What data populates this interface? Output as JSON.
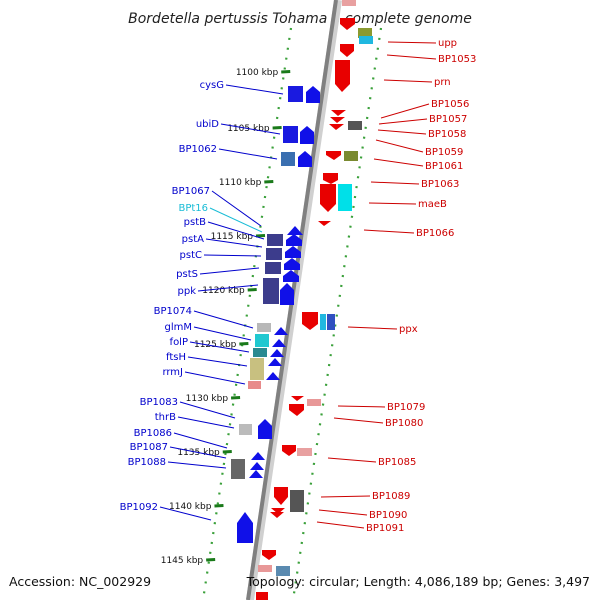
{
  "title": "Bordetella pertussis Tohama I, complete genome",
  "accession": "Accession: NC_002929",
  "topology": "Topology: circular; Length: 4,086,189 bp; Genes: 3,497",
  "colors": {
    "forward": "#1010e8",
    "reverse": "#e80000",
    "trna": "#19bcd6",
    "axis": "#888888",
    "tick_major": "#33aa33",
    "tick_minor": "#1a7a1a",
    "left_label": "#0000cc",
    "right_label": "#cc0000",
    "trna_label": "#19bcd6"
  },
  "kbp_ticks": [
    {
      "label": "1100 kbp",
      "kbp": 1100
    },
    {
      "label": "1105 kbp",
      "kbp": 1105
    },
    {
      "label": "1110 kbp",
      "kbp": 1110
    },
    {
      "label": "1115 kbp",
      "kbp": 1115
    },
    {
      "label": "1120 kbp",
      "kbp": 1120
    },
    {
      "label": "1125 kbp",
      "kbp": 1125
    },
    {
      "label": "1130 kbp",
      "kbp": 1130
    },
    {
      "label": "1135 kbp",
      "kbp": 1135
    },
    {
      "label": "1140 kbp",
      "kbp": 1140
    },
    {
      "label": "1145 kbp",
      "kbp": 1145
    }
  ],
  "left_genes": [
    {
      "name": "cysG",
      "kind": "forward"
    },
    {
      "name": "ubiD",
      "kind": "forward"
    },
    {
      "name": "BP1062",
      "kind": "forward"
    },
    {
      "name": "BP1067",
      "kind": "forward"
    },
    {
      "name": "BPt16",
      "kind": "trna"
    },
    {
      "name": "pstB",
      "kind": "forward"
    },
    {
      "name": "pstA",
      "kind": "forward"
    },
    {
      "name": "pstC",
      "kind": "forward"
    },
    {
      "name": "pstS",
      "kind": "forward"
    },
    {
      "name": "ppk",
      "kind": "forward"
    },
    {
      "name": "BP1074",
      "kind": "forward"
    },
    {
      "name": "glmM",
      "kind": "forward"
    },
    {
      "name": "folP",
      "kind": "forward"
    },
    {
      "name": "ftsH",
      "kind": "forward"
    },
    {
      "name": "rrmJ",
      "kind": "forward"
    },
    {
      "name": "BP1083",
      "kind": "forward"
    },
    {
      "name": "thrB",
      "kind": "forward"
    },
    {
      "name": "BP1086",
      "kind": "forward"
    },
    {
      "name": "BP1087",
      "kind": "forward"
    },
    {
      "name": "BP1088",
      "kind": "forward"
    },
    {
      "name": "BP1092",
      "kind": "forward"
    }
  ],
  "right_genes": [
    {
      "name": "upp"
    },
    {
      "name": "BP1053"
    },
    {
      "name": "prn"
    },
    {
      "name": "BP1056"
    },
    {
      "name": "BP1057"
    },
    {
      "name": "BP1058"
    },
    {
      "name": "BP1059"
    },
    {
      "name": "BP1061"
    },
    {
      "name": "BP1063"
    },
    {
      "name": "maeB"
    },
    {
      "name": "BP1066"
    },
    {
      "name": "ppx"
    },
    {
      "name": "BP1079"
    },
    {
      "name": "BP1080"
    },
    {
      "name": "BP1085"
    },
    {
      "name": "BP1089"
    },
    {
      "name": "BP1090"
    },
    {
      "name": "BP1091"
    }
  ]
}
